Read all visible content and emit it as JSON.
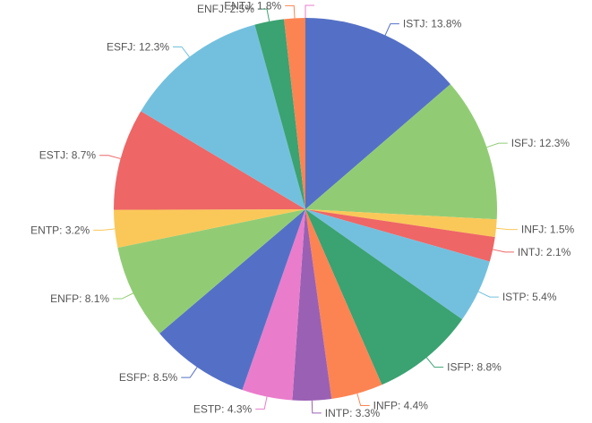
{
  "chart_data": {
    "type": "pie",
    "series": [
      {
        "values": [
          {
            "name": "ISTJ",
            "value": 13.8,
            "label": "ISTJ: 13.8%",
            "color": "#5470c6"
          },
          {
            "name": "ISFJ",
            "value": 12.3,
            "label": "ISFJ: 12.3%",
            "color": "#91cc75"
          },
          {
            "name": "INFJ",
            "value": 1.5,
            "label": "INFJ: 1.5%",
            "color": "#fac858"
          },
          {
            "name": "INTJ",
            "value": 2.1,
            "label": "INTJ: 2.1%",
            "color": "#ee6666"
          },
          {
            "name": "ISTP",
            "value": 5.4,
            "label": "ISTP: 5.4%",
            "color": "#73c0de"
          },
          {
            "name": "ISFP",
            "value": 8.8,
            "label": "ISFP: 8.8%",
            "color": "#3ba272"
          },
          {
            "name": "INFP",
            "value": 4.4,
            "label": "INFP: 4.4%",
            "color": "#fc8452"
          },
          {
            "name": "INTP",
            "value": 3.3,
            "label": "INTP: 3.3%",
            "color": "#9a60b4"
          },
          {
            "name": "ESTP",
            "value": 4.3,
            "label": "ESTP: 4.3%",
            "color": "#ea7ccc"
          },
          {
            "name": "ESFP",
            "value": 8.5,
            "label": "ESFP: 8.5%",
            "color": "#5470c6"
          },
          {
            "name": "ENFP",
            "value": 8.1,
            "label": "ENFP: 8.1%",
            "color": "#91cc75"
          },
          {
            "name": "ENTP",
            "value": 3.2,
            "label": "ENTP: 3.2%",
            "color": "#fac858"
          },
          {
            "name": "ESTJ",
            "value": 8.7,
            "label": "ESTJ: 8.7%",
            "color": "#ee6666"
          },
          {
            "name": "ESFJ",
            "value": 12.3,
            "label": "ESFJ: 12.3%",
            "color": "#73c0de"
          },
          {
            "name": "ENFJ",
            "value": 2.5,
            "label": "ENFJ: 2.5%",
            "color": "#3ba272"
          },
          {
            "name": "ENTJ",
            "value": 1.8,
            "label": "ENTJ: 1.8%",
            "color": "#fc8452"
          },
          {
            "name": "",
            "value": 0,
            "label": "",
            "color": "#9a60b4"
          },
          {
            "name": "",
            "value": 0,
            "label": "",
            "color": "#ea7ccc"
          }
        ]
      }
    ]
  }
}
